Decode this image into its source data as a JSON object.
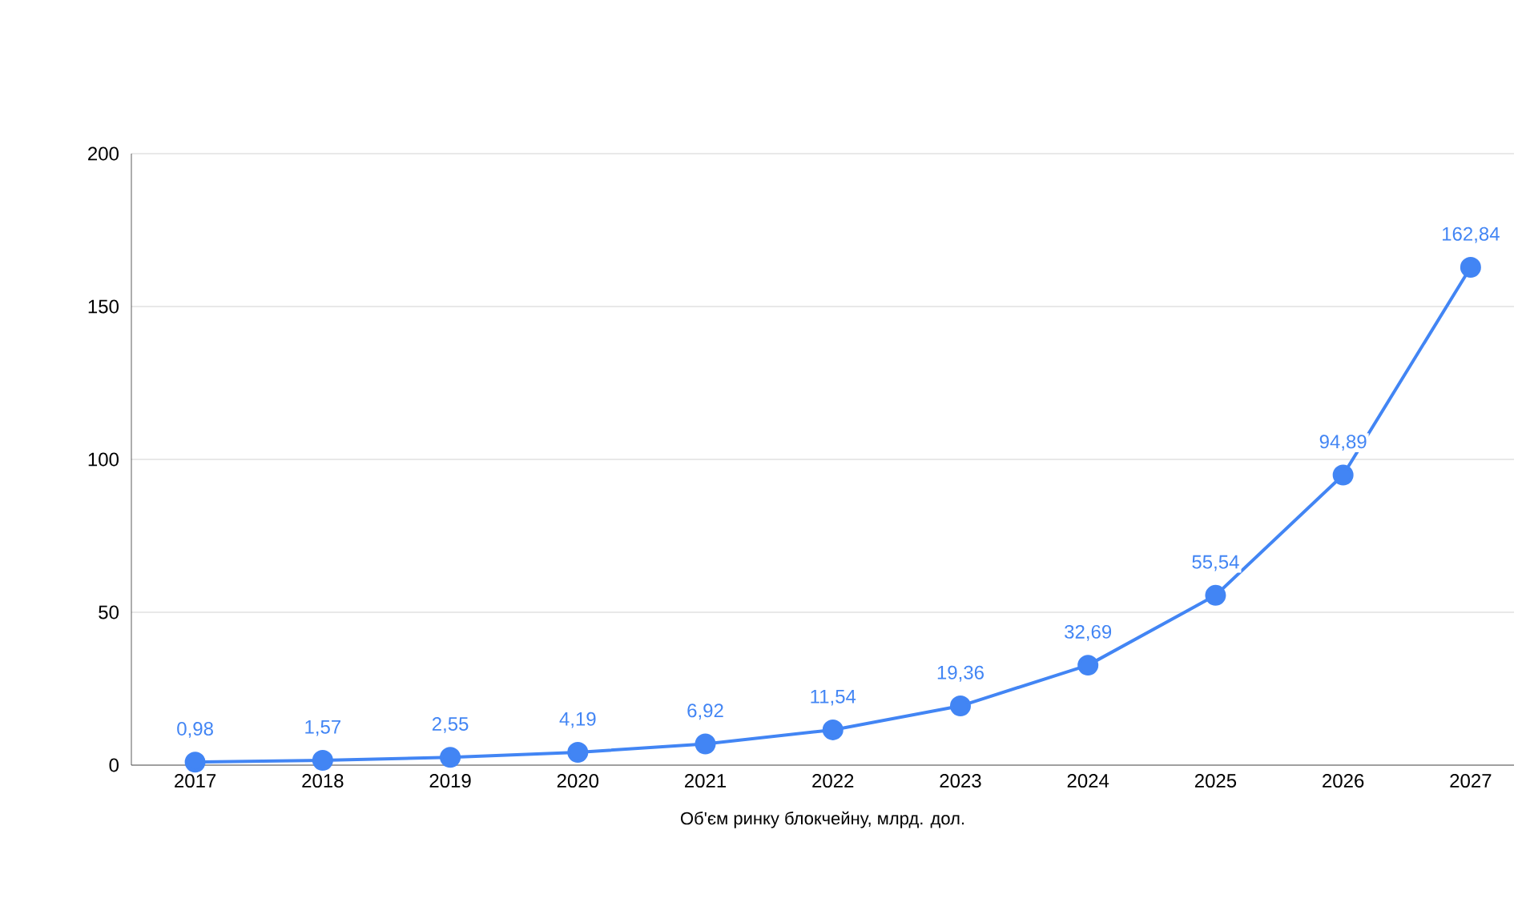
{
  "chart_data": {
    "type": "line",
    "xlabel": "Об'єм ринку блокчейну, млрд. дол.",
    "categories": [
      "2017",
      "2018",
      "2019",
      "2020",
      "2021",
      "2022",
      "2023",
      "2024",
      "2025",
      "2026",
      "2027"
    ],
    "values": [
      0.98,
      1.57,
      2.55,
      4.19,
      6.92,
      11.54,
      19.36,
      32.69,
      55.54,
      94.89,
      162.84
    ],
    "value_labels": [
      "0,98",
      "1,57",
      "2,55",
      "4,19",
      "6,92",
      "11,54",
      "19,36",
      "32,69",
      "55,54",
      "94,89",
      "162,84"
    ],
    "color": "#4285f4",
    "marker": "circle",
    "line_style": "solid",
    "grid": "y",
    "ylim": [
      0,
      200
    ],
    "yticks": [
      0,
      50,
      100,
      150,
      200
    ]
  }
}
